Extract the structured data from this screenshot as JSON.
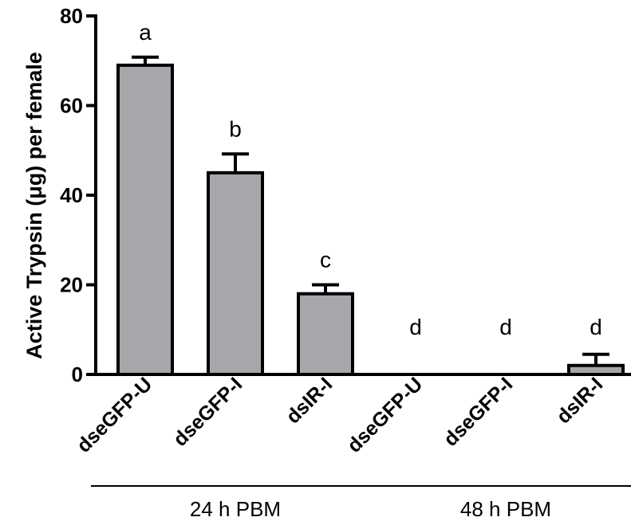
{
  "chart_data": {
    "type": "bar",
    "ylabel": "Active Trypsin (μg) per female",
    "ylim": [
      0,
      80
    ],
    "yticks": [
      0,
      20,
      40,
      60,
      80
    ],
    "categories": [
      "dseGFP-U",
      "dseGFP-I",
      "dsIR-I",
      "dseGFP-U",
      "dseGFP-I",
      "dsIR-I"
    ],
    "values": [
      69,
      45,
      18,
      0,
      0,
      2
    ],
    "errors": [
      1.8,
      4.2,
      2.0,
      0,
      0,
      2.5
    ],
    "letters": [
      "a",
      "b",
      "c",
      "d",
      "d",
      "d"
    ],
    "groups": [
      {
        "label": "24 h PBM",
        "start": 0,
        "end": 2
      },
      {
        "label": "48 h PBM",
        "start": 3,
        "end": 5
      }
    ],
    "bar_color": "#a6a6ab",
    "grid": false
  }
}
